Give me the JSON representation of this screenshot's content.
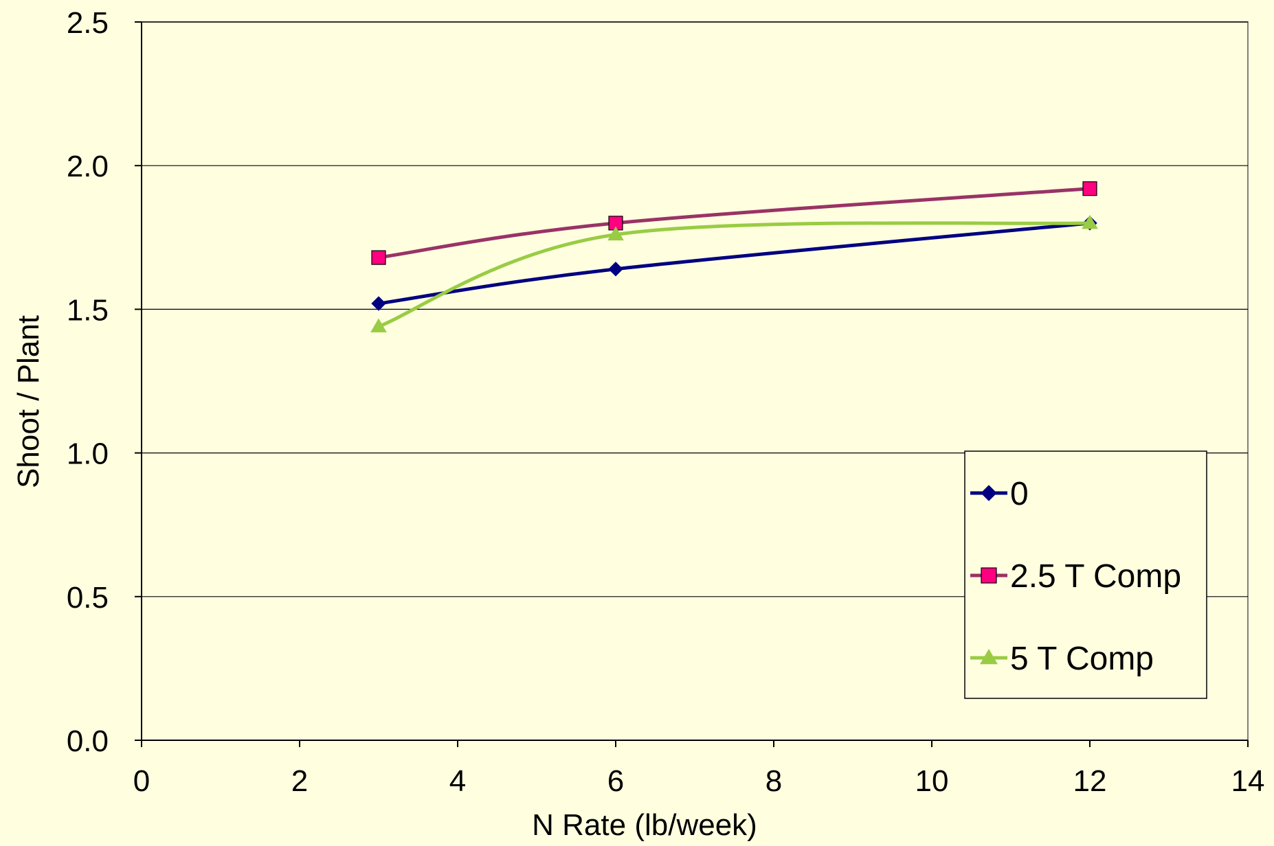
{
  "chart_data": {
    "type": "scatter",
    "title": "",
    "xlabel": "N Rate (lb/week)",
    "ylabel": "Shoot / Plant",
    "xlim": [
      0,
      14
    ],
    "ylim": [
      0.0,
      2.5
    ],
    "x_ticks": [
      "0",
      "2",
      "4",
      "6",
      "8",
      "10",
      "12",
      "14"
    ],
    "x_tick_values": [
      0,
      2,
      4,
      6,
      8,
      10,
      12,
      14
    ],
    "y_ticks": [
      "0.0",
      "0.5",
      "1.0",
      "1.5",
      "2.0",
      "2.5"
    ],
    "y_tick_values": [
      0.0,
      0.5,
      1.0,
      1.5,
      2.0,
      2.5
    ],
    "grid": "horizontal",
    "lines": "smoothed",
    "legend_position": "right",
    "background_color": "#FFFFE0",
    "series": [
      {
        "name": "0",
        "color": "#000080",
        "marker": "diamond",
        "x": [
          3,
          6,
          12
        ],
        "y": [
          1.52,
          1.64,
          1.8
        ]
      },
      {
        "name": "2.5 T Comp",
        "color": "#993366",
        "marker_color": "#FF0080",
        "marker": "square",
        "x": [
          3,
          6,
          12
        ],
        "y": [
          1.68,
          1.8,
          1.92
        ]
      },
      {
        "name": "5 T Comp",
        "color": "#99CC44",
        "marker": "triangle",
        "x": [
          3,
          6,
          12
        ],
        "y": [
          1.44,
          1.76,
          1.8
        ]
      }
    ]
  }
}
